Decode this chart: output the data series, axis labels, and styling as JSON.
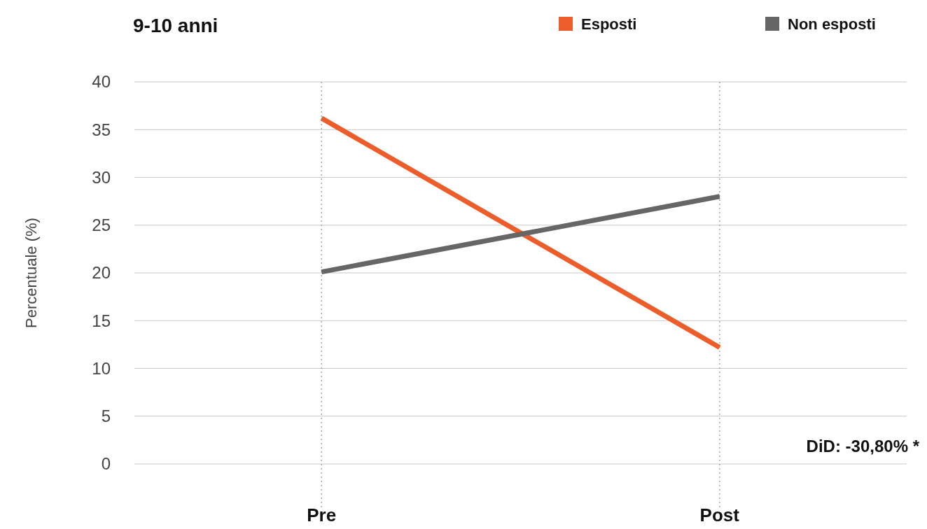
{
  "chart_data": {
    "type": "line",
    "title": "9-10 anni",
    "ylabel": "Percentuale (%)",
    "categories": [
      "Pre",
      "Post"
    ],
    "series": [
      {
        "name": "Esposti",
        "color": "#eb5e2b",
        "values": [
          36.2,
          12.2
        ]
      },
      {
        "name": "Non esposti",
        "color": "#666666",
        "values": [
          20.1,
          28.0
        ]
      }
    ],
    "ylim": [
      0,
      40
    ],
    "yticks": [
      0,
      5,
      10,
      15,
      20,
      25,
      30,
      35,
      40
    ],
    "grid": true,
    "legend": "top right",
    "marker": "none",
    "line_style": "solid",
    "annotations": [
      "DiD: -30,80% *"
    ]
  }
}
